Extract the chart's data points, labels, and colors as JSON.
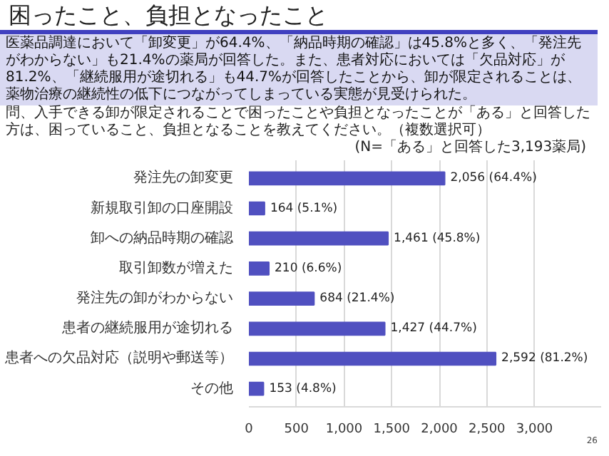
{
  "chart_data": {
    "type": "bar",
    "orientation": "horizontal",
    "title": "困ったこと、負担となったこと",
    "subtitle": "医薬品調達において「卸変更」が64.4%、「納品時期の確認」は45.8%と多く、「発注先がわからない」も21.4%の薬局が回答した。また、患者対応においては「欠品対応」が81.2%、「継続服用が途切れる」も44.7%が回答したことから、卸が限定されることは、薬物治療の継続性の低下につながってしまっている実態が見受けられた。",
    "annotations": [
      "問、入手できる卸が限定されることで困ったことや負担となったことが「ある」と回答した方は、困っていること、負担となることを教えてください。（複数選択可）",
      "(N=「ある」と回答した3,193薬局)",
      "26"
    ],
    "categories": [
      "発注先の卸変更",
      "新規取引卸の口座開設",
      "卸への納品時期の確認",
      "取引卸数が増えた",
      "発注先の卸がわからない",
      "患者の継続服用が途切れる",
      "患者への欠品対応（説明や郵送等）",
      "その他"
    ],
    "values": [
      2056,
      164,
      1461,
      210,
      684,
      1427,
      2592,
      153
    ],
    "value_labels": [
      "2,056 (64.4%)",
      "164 (5.1%)",
      "1,461 (45.8%)",
      "210 (6.6%)",
      "684 (21.4%)",
      "1,427 (44.7%)",
      "2,592 (81.2%)",
      "153 (4.8%)"
    ],
    "color": "#5050c0",
    "xlim": [
      0,
      3700
    ],
    "xticks": [
      0,
      {
        "value": 500,
        "label": "500"
      },
      {
        "value": 1000,
        "label": "1,000"
      },
      {
        "value": 1500,
        "label": "1,500"
      },
      {
        "value": 2000,
        "label": "2,000"
      },
      {
        "value": 2500,
        "label": "2,500"
      },
      {
        "value": 3000,
        "label": "3,000"
      }
    ],
    "grid": "x"
  }
}
